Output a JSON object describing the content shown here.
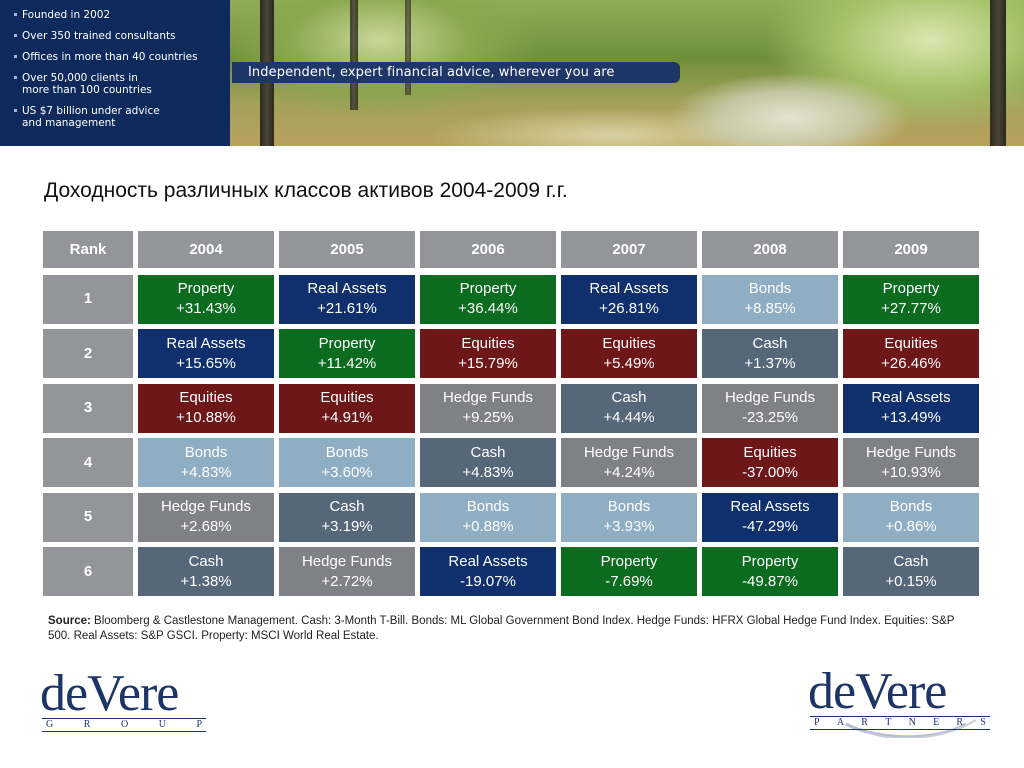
{
  "banner": {
    "facts": [
      {
        "lines": [
          "Founded in 2002"
        ]
      },
      {
        "lines": [
          "Over 350 trained consultants"
        ]
      },
      {
        "lines": [
          "Offices in more than 40 countries"
        ]
      },
      {
        "lines": [
          "Over 50,000 clients in",
          "more than 100 countries"
        ]
      },
      {
        "lines": [
          "US $7 billion under advice",
          "and management"
        ]
      }
    ],
    "tagline": "Independent, expert financial advice, wherever you are"
  },
  "title": "Доходность различных классов активов 2004-2009 г.г.",
  "table": {
    "rank_header": "Rank",
    "years": [
      "2004",
      "2005",
      "2006",
      "2007",
      "2008",
      "2009"
    ],
    "ranks": [
      "1",
      "2",
      "3",
      "4",
      "5",
      "6"
    ],
    "colors": {
      "Property": "#0b6b1e",
      "Real Assets": "#0f2f6d",
      "Equities": "#6e1718",
      "Bonds": "#8faec4",
      "Cash": "#566779",
      "Hedge Funds": "#808184",
      "header": "#939598"
    },
    "rows": [
      [
        {
          "asset": "Property",
          "ret": "+31.43%"
        },
        {
          "asset": "Real Assets",
          "ret": "+21.61%"
        },
        {
          "asset": "Property",
          "ret": "+36.44%"
        },
        {
          "asset": "Real Assets",
          "ret": "+26.81%"
        },
        {
          "asset": "Bonds",
          "ret": "+8.85%"
        },
        {
          "asset": "Property",
          "ret": "+27.77%"
        }
      ],
      [
        {
          "asset": "Real Assets",
          "ret": "+15.65%"
        },
        {
          "asset": "Property",
          "ret": "+11.42%"
        },
        {
          "asset": "Equities",
          "ret": "+15.79%"
        },
        {
          "asset": "Equities",
          "ret": "+5.49%"
        },
        {
          "asset": "Cash",
          "ret": "+1.37%"
        },
        {
          "asset": "Equities",
          "ret": "+26.46%"
        }
      ],
      [
        {
          "asset": "Equities",
          "ret": "+10.88%"
        },
        {
          "asset": "Equities",
          "ret": "+4.91%"
        },
        {
          "asset": "Hedge Funds",
          "ret": "+9.25%"
        },
        {
          "asset": "Cash",
          "ret": "+4.44%"
        },
        {
          "asset": "Hedge Funds",
          "ret": "-23.25%"
        },
        {
          "asset": "Real Assets",
          "ret": "+13.49%"
        }
      ],
      [
        {
          "asset": "Bonds",
          "ret": "+4.83%"
        },
        {
          "asset": "Bonds",
          "ret": "+3.60%"
        },
        {
          "asset": "Cash",
          "ret": "+4.83%"
        },
        {
          "asset": "Hedge Funds",
          "ret": "+4.24%"
        },
        {
          "asset": "Equities",
          "ret": "-37.00%"
        },
        {
          "asset": "Hedge Funds",
          "ret": "+10.93%"
        }
      ],
      [
        {
          "asset": "Hedge Funds",
          "ret": "+2.68%"
        },
        {
          "asset": "Cash",
          "ret": "+3.19%"
        },
        {
          "asset": "Bonds",
          "ret": "+0.88%"
        },
        {
          "asset": "Bonds",
          "ret": "+3.93%"
        },
        {
          "asset": "Real Assets",
          "ret": "-47.29%"
        },
        {
          "asset": "Bonds",
          "ret": "+0.86%"
        }
      ],
      [
        {
          "asset": "Cash",
          "ret": "+1.38%"
        },
        {
          "asset": "Hedge Funds",
          "ret": "+2.72%"
        },
        {
          "asset": "Real Assets",
          "ret": "-19.07%"
        },
        {
          "asset": "Property",
          "ret": "-7.69%"
        },
        {
          "asset": "Property",
          "ret": "-49.87%"
        },
        {
          "asset": "Cash",
          "ret": "+0.15%"
        }
      ]
    ]
  },
  "source": {
    "label": "Source:",
    "text": "Bloomberg & Castlestone Management. Cash: 3-Month T-Bill. Bonds: ML Global Government Bond Index. Hedge Funds: HFRX Global Hedge Fund Index. Equities: S&P 500. Real Assets: S&P GSCI. Property: MSCI World Real Estate."
  },
  "logos": {
    "left": {
      "word": "deVere",
      "sub": [
        "G",
        "R",
        "O",
        "U",
        "P"
      ]
    },
    "right": {
      "word": "deVere",
      "sub": [
        "P",
        "A",
        "R",
        "T",
        "N",
        "E",
        "R",
        "S"
      ]
    }
  }
}
